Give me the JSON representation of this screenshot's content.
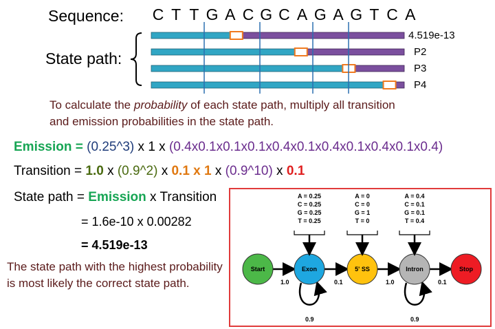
{
  "header": {
    "sequence_label": "Sequence:",
    "sequence": [
      "C",
      "T",
      "T",
      "G",
      "A",
      "C",
      "G",
      "C",
      "A",
      "G",
      "A",
      "G",
      "T",
      "C",
      "A"
    ],
    "state_path_label": "State path:"
  },
  "paths": [
    {
      "label": "4.519e-13",
      "split_pos": 0.33
    },
    {
      "label": "P2",
      "split_pos": 0.6
    },
    {
      "label": "P3",
      "split_pos": 0.8
    },
    {
      "label": "P4",
      "split_pos": 0.97
    }
  ],
  "note": {
    "part1": "To calculate the ",
    "emphasis": "probability",
    "part2": " of each state path, multiply all transition and emission probabilities in the state path."
  },
  "emission": {
    "label": "Emission",
    "eq": " = ",
    "term1": "(0.25^3)",
    "times1": " x 1 x ",
    "term2": "(0.4x0.1x0.1x0.1x0.4x0.1x0.4x0.1x0.4x0.1x0.4)"
  },
  "transition": {
    "label": "Transition",
    "eq": " = ",
    "t1": "1.0",
    "x1": " x ",
    "t2": "(0.9^2)",
    "x2": " x ",
    "t3": "0.1 x 1",
    "x3": " x ",
    "t4": "(0.9^10)",
    "x4": " x ",
    "t5": "0.1"
  },
  "state_path_line": {
    "label": "State path = ",
    "emission": "Emission",
    "times": " x ",
    "transition": "Transition"
  },
  "result1": "=  1.6e-10  x 0.00282",
  "result2": "=  4.519e-13",
  "conclusion": "The state path with the highest probability is most likely the correct state path.",
  "diagram": {
    "emissions": [
      {
        "lines": [
          "A = 0.25",
          "C = 0.25",
          "G = 0.25",
          "T = 0.25"
        ]
      },
      {
        "lines": [
          "A = 0",
          "C = 0",
          "G = 1",
          "T = 0"
        ]
      },
      {
        "lines": [
          "A = 0.4",
          "C = 0.1",
          "G = 0.1",
          "T = 0.4"
        ]
      }
    ],
    "nodes": [
      {
        "label": "Start",
        "color": "#4cb848"
      },
      {
        "label": "Exon",
        "color": "#1ea7e0"
      },
      {
        "label": "5' SS",
        "color": "#ffc20e"
      },
      {
        "label": "Intron",
        "color": "#b5b5b5"
      },
      {
        "label": "Stop",
        "color": "#ee1c24"
      }
    ],
    "edges": {
      "start_exon": "1.0",
      "exon_ss": "0.1",
      "ss_intron": "1.0",
      "intron_stop": "0.1"
    },
    "self_loops": {
      "exon": "0.9",
      "intron": "0.9"
    }
  },
  "colors": {
    "exon_bar": "#31a6c4",
    "intron_bar": "#7b4f9e",
    "splice_box": "#f07a20",
    "marker_line": "#2a6fb0"
  }
}
